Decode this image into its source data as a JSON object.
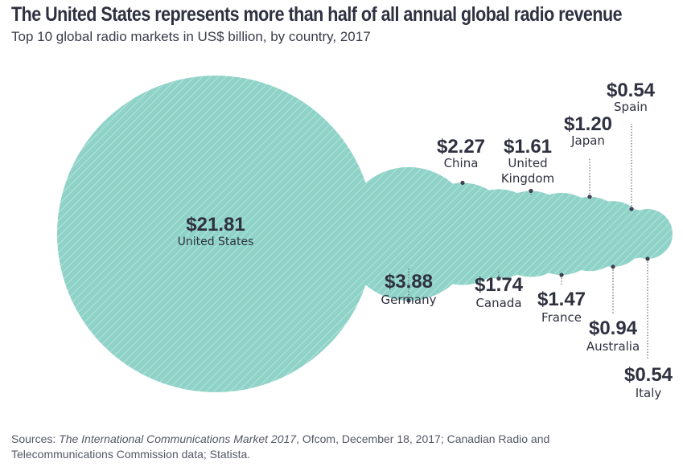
{
  "header": {
    "title": "The United States represents more than half of all annual global radio revenue",
    "subtitle": "Top 10 global radio markets in US$ billion, by country, 2017"
  },
  "footer": {
    "source_prefix": "Sources: ",
    "source_italic": "The International Communications Market 2017",
    "source_rest": ", Ofcom, December 18, 2017; Canadian Radio and Telecommunications Commission data; Statista."
  },
  "colors": {
    "bubble": "#8fd3c8",
    "stripe": "#b4e3db",
    "text": "#2f3140",
    "leader": "#555555"
  },
  "chart_data": {
    "type": "bubble",
    "title": "The United States represents more than half of all annual global radio revenue",
    "subtitle": "Top 10 global radio markets in US$ billion, by country, 2017",
    "unit": "US$ billion",
    "year": 2017,
    "series": [
      {
        "country": "United States",
        "value": 21.81,
        "label": "$21.81",
        "label_position": "inside"
      },
      {
        "country": "Germany",
        "value": 3.88,
        "label": "$3.88",
        "label_position": "below"
      },
      {
        "country": "China",
        "value": 2.27,
        "label": "$2.27",
        "label_position": "above"
      },
      {
        "country": "Canada",
        "value": 1.74,
        "label": "$1.74",
        "label_position": "below"
      },
      {
        "country": "United Kingdom",
        "value": 1.61,
        "label": "$1.61",
        "label_position": "above"
      },
      {
        "country": "France",
        "value": 1.47,
        "label": "$1.47",
        "label_position": "below"
      },
      {
        "country": "Japan",
        "value": 1.2,
        "label": "$1.20",
        "label_position": "above"
      },
      {
        "country": "Australia",
        "value": 0.94,
        "label": "$0.94",
        "label_position": "below"
      },
      {
        "country": "Spain",
        "value": 0.54,
        "label": "$0.54",
        "label_position": "above"
      },
      {
        "country": "Italy",
        "value": 0.54,
        "label": "$0.54",
        "label_position": "below"
      }
    ]
  }
}
